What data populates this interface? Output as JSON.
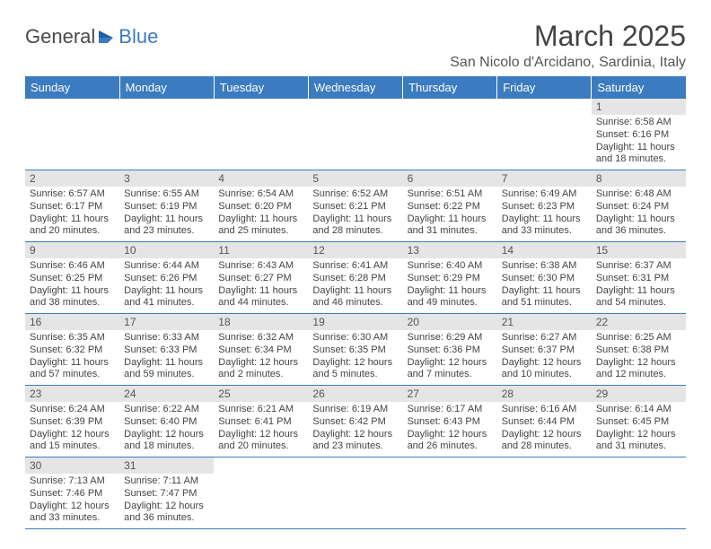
{
  "logo": {
    "text_left": "General",
    "text_right": "Blue"
  },
  "header": {
    "month_title": "March 2025",
    "location": "San Nicolo d'Arcidano, Sardinia, Italy"
  },
  "colors": {
    "header_bg": "#3b7bbf",
    "header_text": "#ffffff",
    "daynum_bg": "#e5e5e5",
    "border": "#3b7bbf",
    "body_text": "#444444"
  },
  "weekday_labels": [
    "Sunday",
    "Monday",
    "Tuesday",
    "Wednesday",
    "Thursday",
    "Friday",
    "Saturday"
  ],
  "weeks": [
    [
      null,
      null,
      null,
      null,
      null,
      null,
      {
        "num": "1",
        "sunrise": "Sunrise: 6:58 AM",
        "sunset": "Sunset: 6:16 PM",
        "day1": "Daylight: 11 hours",
        "day2": "and 18 minutes."
      }
    ],
    [
      {
        "num": "2",
        "sunrise": "Sunrise: 6:57 AM",
        "sunset": "Sunset: 6:17 PM",
        "day1": "Daylight: 11 hours",
        "day2": "and 20 minutes."
      },
      {
        "num": "3",
        "sunrise": "Sunrise: 6:55 AM",
        "sunset": "Sunset: 6:19 PM",
        "day1": "Daylight: 11 hours",
        "day2": "and 23 minutes."
      },
      {
        "num": "4",
        "sunrise": "Sunrise: 6:54 AM",
        "sunset": "Sunset: 6:20 PM",
        "day1": "Daylight: 11 hours",
        "day2": "and 25 minutes."
      },
      {
        "num": "5",
        "sunrise": "Sunrise: 6:52 AM",
        "sunset": "Sunset: 6:21 PM",
        "day1": "Daylight: 11 hours",
        "day2": "and 28 minutes."
      },
      {
        "num": "6",
        "sunrise": "Sunrise: 6:51 AM",
        "sunset": "Sunset: 6:22 PM",
        "day1": "Daylight: 11 hours",
        "day2": "and 31 minutes."
      },
      {
        "num": "7",
        "sunrise": "Sunrise: 6:49 AM",
        "sunset": "Sunset: 6:23 PM",
        "day1": "Daylight: 11 hours",
        "day2": "and 33 minutes."
      },
      {
        "num": "8",
        "sunrise": "Sunrise: 6:48 AM",
        "sunset": "Sunset: 6:24 PM",
        "day1": "Daylight: 11 hours",
        "day2": "and 36 minutes."
      }
    ],
    [
      {
        "num": "9",
        "sunrise": "Sunrise: 6:46 AM",
        "sunset": "Sunset: 6:25 PM",
        "day1": "Daylight: 11 hours",
        "day2": "and 38 minutes."
      },
      {
        "num": "10",
        "sunrise": "Sunrise: 6:44 AM",
        "sunset": "Sunset: 6:26 PM",
        "day1": "Daylight: 11 hours",
        "day2": "and 41 minutes."
      },
      {
        "num": "11",
        "sunrise": "Sunrise: 6:43 AM",
        "sunset": "Sunset: 6:27 PM",
        "day1": "Daylight: 11 hours",
        "day2": "and 44 minutes."
      },
      {
        "num": "12",
        "sunrise": "Sunrise: 6:41 AM",
        "sunset": "Sunset: 6:28 PM",
        "day1": "Daylight: 11 hours",
        "day2": "and 46 minutes."
      },
      {
        "num": "13",
        "sunrise": "Sunrise: 6:40 AM",
        "sunset": "Sunset: 6:29 PM",
        "day1": "Daylight: 11 hours",
        "day2": "and 49 minutes."
      },
      {
        "num": "14",
        "sunrise": "Sunrise: 6:38 AM",
        "sunset": "Sunset: 6:30 PM",
        "day1": "Daylight: 11 hours",
        "day2": "and 51 minutes."
      },
      {
        "num": "15",
        "sunrise": "Sunrise: 6:37 AM",
        "sunset": "Sunset: 6:31 PM",
        "day1": "Daylight: 11 hours",
        "day2": "and 54 minutes."
      }
    ],
    [
      {
        "num": "16",
        "sunrise": "Sunrise: 6:35 AM",
        "sunset": "Sunset: 6:32 PM",
        "day1": "Daylight: 11 hours",
        "day2": "and 57 minutes."
      },
      {
        "num": "17",
        "sunrise": "Sunrise: 6:33 AM",
        "sunset": "Sunset: 6:33 PM",
        "day1": "Daylight: 11 hours",
        "day2": "and 59 minutes."
      },
      {
        "num": "18",
        "sunrise": "Sunrise: 6:32 AM",
        "sunset": "Sunset: 6:34 PM",
        "day1": "Daylight: 12 hours",
        "day2": "and 2 minutes."
      },
      {
        "num": "19",
        "sunrise": "Sunrise: 6:30 AM",
        "sunset": "Sunset: 6:35 PM",
        "day1": "Daylight: 12 hours",
        "day2": "and 5 minutes."
      },
      {
        "num": "20",
        "sunrise": "Sunrise: 6:29 AM",
        "sunset": "Sunset: 6:36 PM",
        "day1": "Daylight: 12 hours",
        "day2": "and 7 minutes."
      },
      {
        "num": "21",
        "sunrise": "Sunrise: 6:27 AM",
        "sunset": "Sunset: 6:37 PM",
        "day1": "Daylight: 12 hours",
        "day2": "and 10 minutes."
      },
      {
        "num": "22",
        "sunrise": "Sunrise: 6:25 AM",
        "sunset": "Sunset: 6:38 PM",
        "day1": "Daylight: 12 hours",
        "day2": "and 12 minutes."
      }
    ],
    [
      {
        "num": "23",
        "sunrise": "Sunrise: 6:24 AM",
        "sunset": "Sunset: 6:39 PM",
        "day1": "Daylight: 12 hours",
        "day2": "and 15 minutes."
      },
      {
        "num": "24",
        "sunrise": "Sunrise: 6:22 AM",
        "sunset": "Sunset: 6:40 PM",
        "day1": "Daylight: 12 hours",
        "day2": "and 18 minutes."
      },
      {
        "num": "25",
        "sunrise": "Sunrise: 6:21 AM",
        "sunset": "Sunset: 6:41 PM",
        "day1": "Daylight: 12 hours",
        "day2": "and 20 minutes."
      },
      {
        "num": "26",
        "sunrise": "Sunrise: 6:19 AM",
        "sunset": "Sunset: 6:42 PM",
        "day1": "Daylight: 12 hours",
        "day2": "and 23 minutes."
      },
      {
        "num": "27",
        "sunrise": "Sunrise: 6:17 AM",
        "sunset": "Sunset: 6:43 PM",
        "day1": "Daylight: 12 hours",
        "day2": "and 26 minutes."
      },
      {
        "num": "28",
        "sunrise": "Sunrise: 6:16 AM",
        "sunset": "Sunset: 6:44 PM",
        "day1": "Daylight: 12 hours",
        "day2": "and 28 minutes."
      },
      {
        "num": "29",
        "sunrise": "Sunrise: 6:14 AM",
        "sunset": "Sunset: 6:45 PM",
        "day1": "Daylight: 12 hours",
        "day2": "and 31 minutes."
      }
    ],
    [
      {
        "num": "30",
        "sunrise": "Sunrise: 7:13 AM",
        "sunset": "Sunset: 7:46 PM",
        "day1": "Daylight: 12 hours",
        "day2": "and 33 minutes."
      },
      {
        "num": "31",
        "sunrise": "Sunrise: 7:11 AM",
        "sunset": "Sunset: 7:47 PM",
        "day1": "Daylight: 12 hours",
        "day2": "and 36 minutes."
      },
      null,
      null,
      null,
      null,
      null
    ]
  ]
}
